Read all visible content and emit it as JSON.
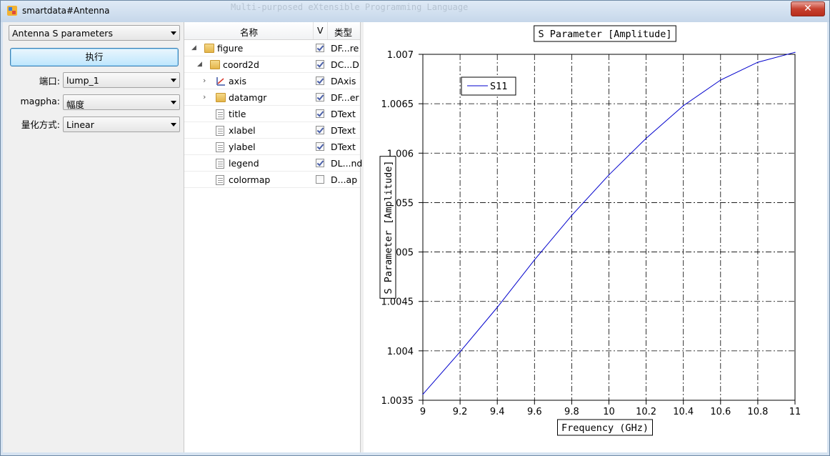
{
  "window": {
    "title": "smartdata#Antenna",
    "ghost_text": "Multi-purposed eXtensible Programming Language",
    "close_label": "✕"
  },
  "left_panel": {
    "dataset_select": "Antenna S parameters",
    "execute_label": "执行",
    "port_label": "端口:",
    "port_value": "lump_1",
    "magpha_label": "magpha:",
    "magpha_value": "幅度",
    "quant_label": "量化方式:",
    "quant_value": "Linear"
  },
  "tree": {
    "headers": {
      "name": "名称",
      "v": "V",
      "type": "类型"
    },
    "rows": [
      {
        "name": "figure",
        "type": "DF...re",
        "checked": true,
        "icon": "folder-icon",
        "expander": "expanded"
      },
      {
        "name": "coord2d",
        "type": "DC...D",
        "checked": true,
        "icon": "folder-icon",
        "expander": "expanded"
      },
      {
        "name": "axis",
        "type": "DAxis",
        "checked": true,
        "icon": "axis-icon",
        "expander": "collapsed"
      },
      {
        "name": "datamgr",
        "type": "DF...er",
        "checked": true,
        "icon": "folder-icon",
        "expander": "collapsed"
      },
      {
        "name": "title",
        "type": "DText",
        "checked": true,
        "icon": "document-icon",
        "expander": "none"
      },
      {
        "name": "xlabel",
        "type": "DText",
        "checked": true,
        "icon": "document-icon",
        "expander": "none"
      },
      {
        "name": "ylabel",
        "type": "DText",
        "checked": true,
        "icon": "document-icon",
        "expander": "none"
      },
      {
        "name": "legend",
        "type": "DL...nd",
        "checked": true,
        "icon": "document-icon",
        "expander": "none"
      },
      {
        "name": "colormap",
        "type": "D...ap",
        "checked": false,
        "icon": "document-icon",
        "expander": "none"
      }
    ]
  },
  "chart_data": {
    "type": "line",
    "title": "S Parameter [Amplitude]",
    "xlabel": "Frequency (GHz)",
    "ylabel": "S Parameter [Amplitude]",
    "xlim": [
      9,
      11
    ],
    "ylim": [
      1.0035,
      1.007
    ],
    "x_ticks": [
      "9",
      "9.2",
      "9.4",
      "9.6",
      "9.8",
      "10",
      "10.2",
      "10.4",
      "10.6",
      "10.8",
      "11"
    ],
    "y_ticks": [
      "1.0035",
      "1.004",
      "1.0045",
      "1.005",
      "1.0055",
      "1.006",
      "1.0065",
      "1.007"
    ],
    "grid": true,
    "legend_position": "top-left",
    "series": [
      {
        "name": "S11",
        "color": "#0000cc",
        "x": [
          9.0,
          9.2,
          9.4,
          9.6,
          9.8,
          10.0,
          10.2,
          10.4,
          10.6,
          10.8,
          11.0
        ],
        "y": [
          1.00356,
          1.00399,
          1.00444,
          1.00492,
          1.00537,
          1.00578,
          1.00615,
          1.00648,
          1.00674,
          1.00692,
          1.00702
        ]
      }
    ]
  }
}
